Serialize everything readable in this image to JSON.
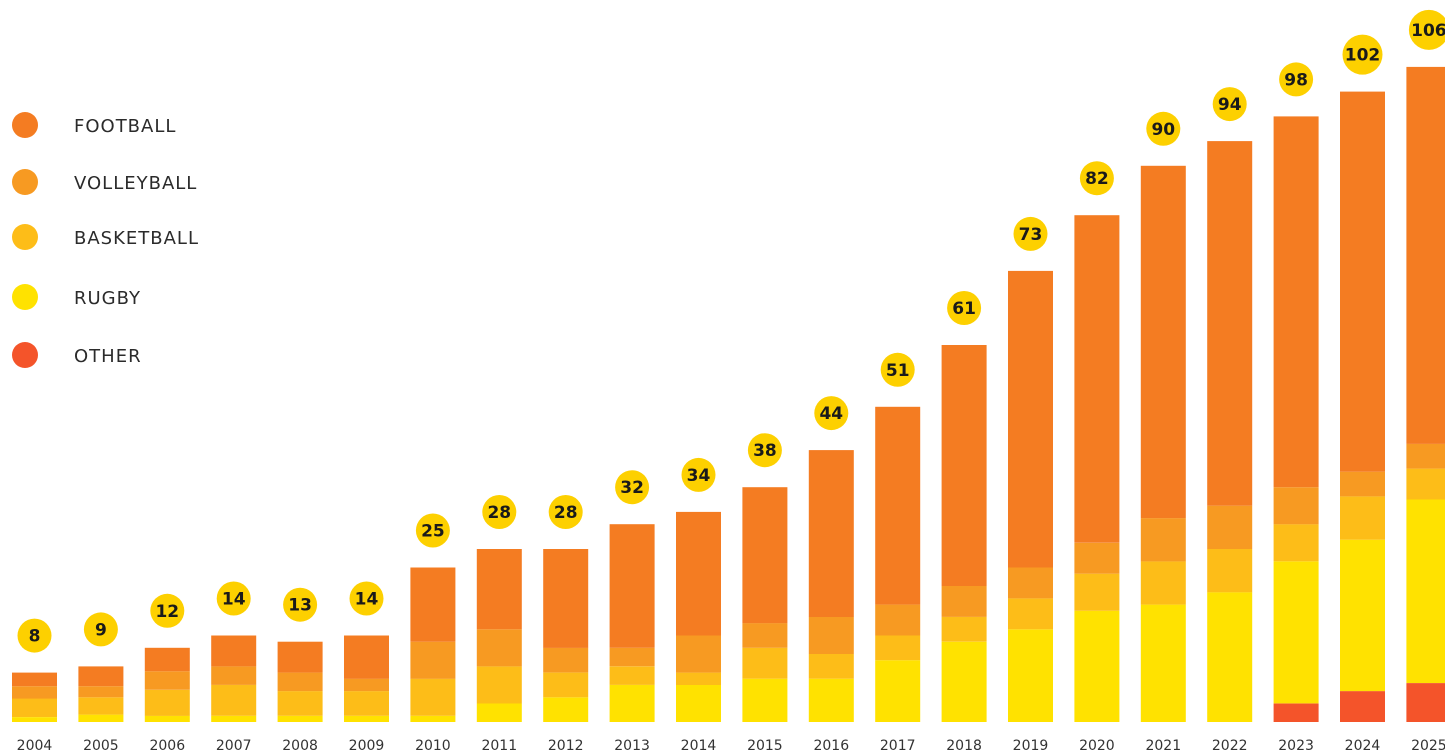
{
  "chart_data": {
    "type": "bar",
    "stacked": true,
    "title": "",
    "xlabel": "",
    "ylabel": "",
    "ylim": [
      0,
      110
    ],
    "grid": false,
    "legend_position": "left",
    "categories": [
      "2004",
      "2005",
      "2006",
      "2007",
      "2008",
      "2009",
      "2010",
      "2011",
      "2012",
      "2013",
      "2014",
      "2015",
      "2016",
      "2017",
      "2018",
      "2019",
      "2020",
      "2021",
      "2022",
      "2023",
      "2024",
      "2025"
    ],
    "totals": [
      8,
      9,
      12,
      14,
      13,
      14,
      25,
      28,
      28,
      32,
      34,
      38,
      44,
      51,
      61,
      73,
      82,
      90,
      94,
      98,
      102,
      106
    ],
    "series": [
      {
        "name": "OTHER",
        "color": "#f4542a",
        "values": [
          0,
          0,
          0,
          0,
          0,
          0,
          0,
          0,
          0,
          0,
          0,
          0,
          0,
          0,
          0,
          0,
          0,
          0,
          0,
          3,
          5,
          6.3
        ]
      },
      {
        "name": "RUGBY",
        "color": "#ffe200",
        "values": [
          0.8,
          1.2,
          1.0,
          1.0,
          1.0,
          1.0,
          1.0,
          3.0,
          4.0,
          6.0,
          6.0,
          7.0,
          7.0,
          10.0,
          13.0,
          15.0,
          18.0,
          19.0,
          21.0,
          23.0,
          24.5,
          29.7
        ]
      },
      {
        "name": "BASKETBALL",
        "color": "#fdbd18",
        "values": [
          3.0,
          2.8,
          4.2,
          5.0,
          4.0,
          4.0,
          6.0,
          6.0,
          4.0,
          3.0,
          2.0,
          5.0,
          4.0,
          4.0,
          4.0,
          5.0,
          6.0,
          7.0,
          7.0,
          6.0,
          7.0,
          5.0
        ]
      },
      {
        "name": "VOLLEYBALL",
        "color": "#f79a22",
        "values": [
          2.0,
          1.8,
          3.0,
          3.0,
          3.0,
          2.0,
          6.0,
          6.0,
          4.0,
          3.0,
          6.0,
          4.0,
          6.0,
          5.0,
          5.0,
          5.0,
          5.0,
          7.0,
          7.0,
          6.0,
          4.0,
          4.0
        ]
      },
      {
        "name": "FOOTBALL",
        "color": "#f47c22",
        "values": [
          2.2,
          3.2,
          3.8,
          5.0,
          5.0,
          7.0,
          12.0,
          13.0,
          16.0,
          20.0,
          20.0,
          22.0,
          27.0,
          32.0,
          39.0,
          48.0,
          53.0,
          57.0,
          59.0,
          60.0,
          61.5,
          61.0
        ]
      }
    ],
    "label_style": {
      "circle_color": "#fdd000"
    }
  },
  "legend": {
    "items": [
      {
        "label": "FOOTBALL",
        "color": "#f47c22"
      },
      {
        "label": "VOLLEYBALL",
        "color": "#f79a22"
      },
      {
        "label": "BASKETBALL",
        "color": "#fdbd18"
      },
      {
        "label": "RUGBY",
        "color": "#ffe200"
      },
      {
        "label": "OTHER",
        "color": "#f4542a"
      }
    ]
  }
}
